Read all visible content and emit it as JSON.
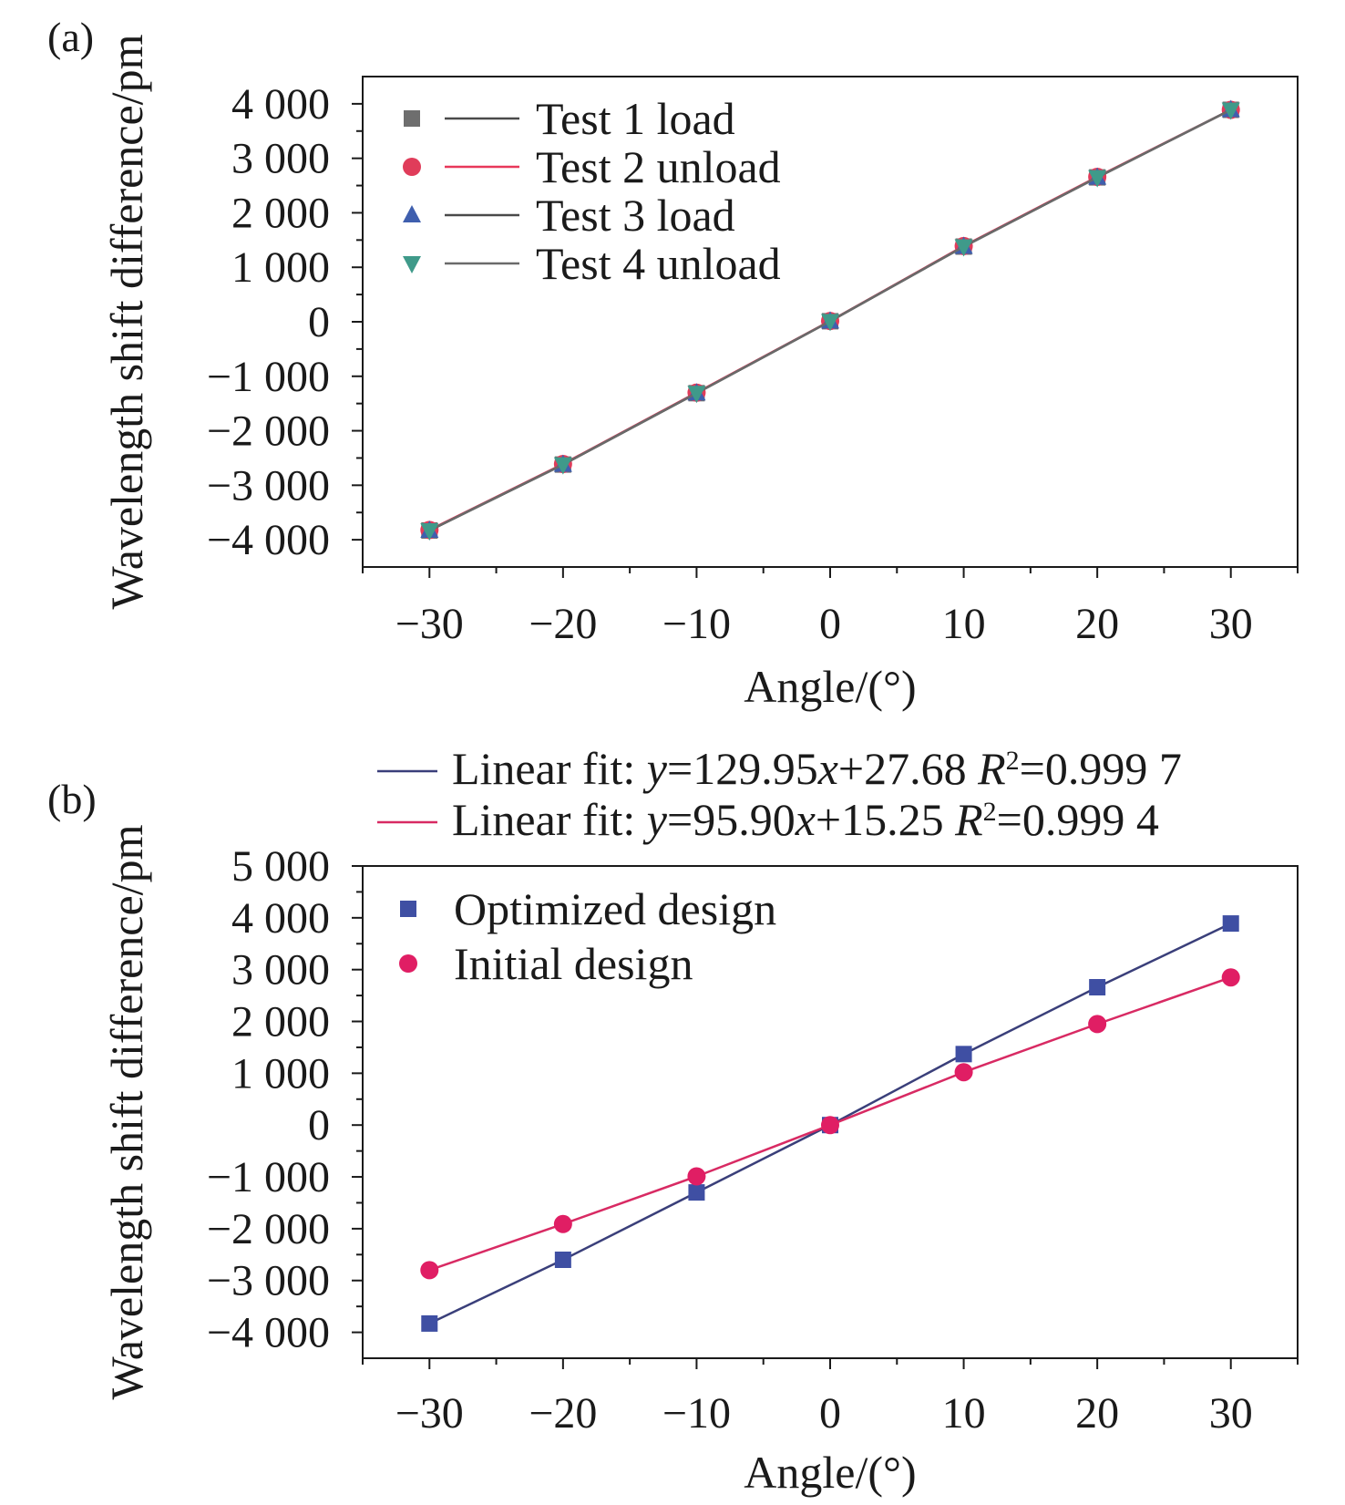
{
  "chart_data": [
    {
      "panel_label": "(a)",
      "type": "line",
      "xlabel": "Angle/(°)",
      "ylabel": "Wavelength shift difference/pm",
      "xlim": [
        -35,
        35
      ],
      "ylim": [
        -4500,
        4500
      ],
      "xticks": [
        -30,
        -20,
        -10,
        0,
        10,
        20,
        30
      ],
      "xtick_labels": [
        "−30",
        "−20",
        "−10",
        "0",
        "10",
        "20",
        "30"
      ],
      "yticks": [
        -4000,
        -3000,
        -2000,
        -1000,
        0,
        1000,
        2000,
        3000,
        4000
      ],
      "ytick_labels": [
        "−4 000",
        "−3 000",
        "−2 000",
        "−1 000",
        "0",
        "1 000",
        "2 000",
        "3 000",
        "4 000"
      ],
      "x": [
        -30,
        -20,
        -10,
        0,
        10,
        20,
        30
      ],
      "series": [
        {
          "name": "Test 1 load",
          "marker": "square",
          "marker_color": "#6e6e6e",
          "line_color": "#4a4a4a",
          "values": [
            -3830,
            -2620,
            -1310,
            10,
            1380,
            2650,
            3890
          ]
        },
        {
          "name": "Test 2 unload",
          "marker": "circle",
          "marker_color": "#e03c5a",
          "line_color": "#e8385a",
          "values": [
            -3820,
            -2610,
            -1300,
            15,
            1390,
            2660,
            3890
          ]
        },
        {
          "name": "Test 3 load",
          "marker": "triangle-up",
          "marker_color": "#3f5fae",
          "line_color": "#4a4a4a",
          "values": [
            -3830,
            -2620,
            -1310,
            10,
            1380,
            2650,
            3890
          ]
        },
        {
          "name": "Test 4 unload",
          "marker": "triangle-down",
          "marker_color": "#3f9a8a",
          "line_color": "#6a6a6a",
          "values": [
            -3830,
            -2620,
            -1310,
            10,
            1380,
            2650,
            3890
          ]
        }
      ],
      "legend_position": "top-left",
      "grid": false
    },
    {
      "panel_label": "(b)",
      "type": "line",
      "xlabel": "Angle/(°)",
      "ylabel": "Wavelength shift difference/pm",
      "xlim": [
        -35,
        35
      ],
      "ylim": [
        -4500,
        5000
      ],
      "xticks": [
        -30,
        -20,
        -10,
        0,
        10,
        20,
        30
      ],
      "xtick_labels": [
        "−30",
        "−20",
        "−10",
        "0",
        "10",
        "20",
        "30"
      ],
      "yticks": [
        -4000,
        -3000,
        -2000,
        -1000,
        0,
        1000,
        2000,
        3000,
        4000,
        5000
      ],
      "ytick_labels": [
        "−4 000",
        "−3 000",
        "−2 000",
        "−1 000",
        "0",
        "1 000",
        "2 000",
        "3 000",
        "4 000",
        "5 000"
      ],
      "x": [
        -30,
        -20,
        -10,
        0,
        10,
        20,
        30
      ],
      "series": [
        {
          "name": "Optimized design",
          "marker": "square",
          "marker_color": "#3f4fa3",
          "line_color": "#3a3f7a",
          "values": [
            -3830,
            -2600,
            -1300,
            0,
            1370,
            2660,
            3890
          ]
        },
        {
          "name": "Initial design",
          "marker": "circle",
          "marker_color": "#e01e64",
          "line_color": "#d82a63",
          "values": [
            -2800,
            -1910,
            -990,
            0,
            1020,
            1950,
            2850
          ]
        }
      ],
      "fits": [
        {
          "prefix": "Linear fit: ",
          "y_var": "y",
          "eq_mid": "=129.95",
          "x_var": "x",
          "eq_tail": "+27.68 ",
          "r_var": "R",
          "r_sup": "2",
          "r_value": "=0.999 7",
          "line_color": "#3a3f7a"
        },
        {
          "prefix": "Linear fit: ",
          "y_var": "y",
          "eq_mid": "=95.90",
          "x_var": "x",
          "eq_tail": "+15.25 ",
          "r_var": "R",
          "r_sup": "2",
          "r_value": "=0.999 4",
          "line_color": "#d82a63"
        }
      ],
      "legend_position": "top-left",
      "grid": false
    }
  ]
}
